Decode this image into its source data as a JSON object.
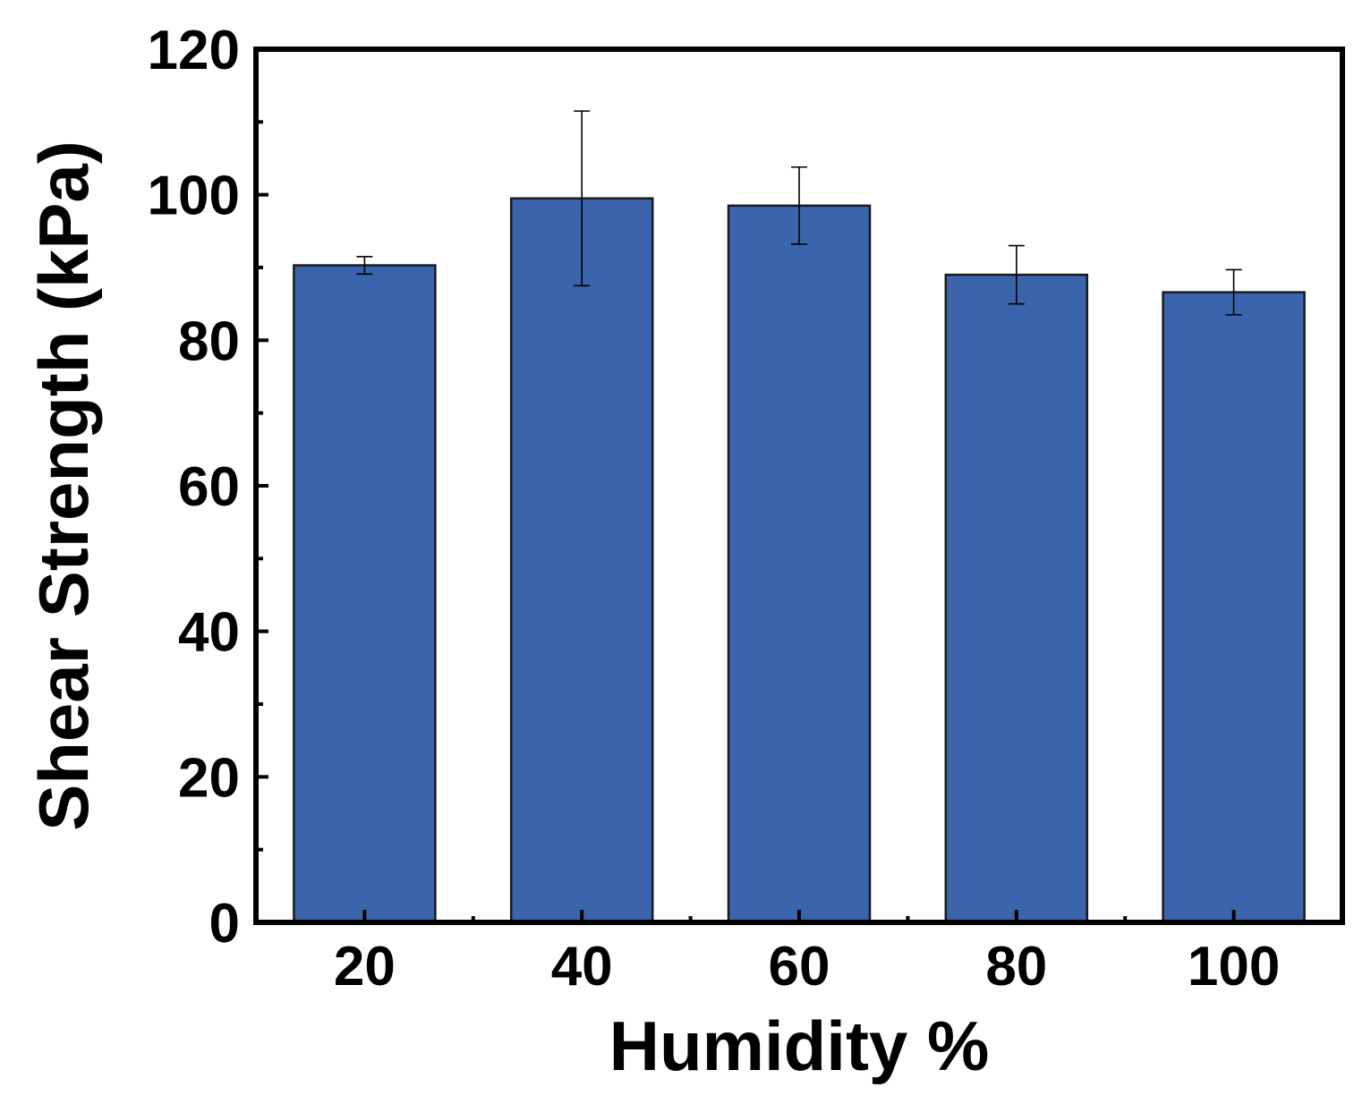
{
  "chart_data": {
    "type": "bar",
    "categories": [
      "20",
      "40",
      "60",
      "80",
      "100"
    ],
    "values": [
      90.3,
      99.5,
      98.5,
      89.0,
      86.6
    ],
    "error": [
      1.2,
      12.0,
      5.3,
      4.0,
      3.1
    ],
    "xlabel": "Humidity %",
    "ylabel": "Shear Strength (kPa)",
    "ylim": [
      0,
      120
    ],
    "yticks": [
      "0",
      "20",
      "40",
      "60",
      "80",
      "100",
      "120"
    ],
    "grid": false,
    "legend": "none",
    "colors": {
      "bar": "#3A64AC",
      "bar_stroke": "#1a1a1a",
      "axis": "#000000"
    }
  }
}
